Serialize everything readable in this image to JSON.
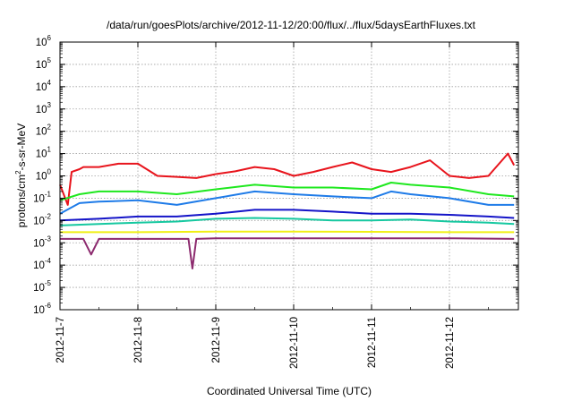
{
  "chart_data": {
    "type": "line",
    "title": "/data/run/goesPlots/archive/2012-11-12/20:00/flux/../flux/5daysEarthFluxes.txt",
    "xlabel": "Coordinated Universal Time (UTC)",
    "ylabel": {
      "prefix": "protons/cm",
      "sup": "2",
      "suffix": "-s-sr-MeV"
    },
    "y_scale": "log",
    "ylim": [
      1e-06,
      1000000.0
    ],
    "y_ticks": [
      {
        "base": "10",
        "exp": "-6",
        "value": 1e-06
      },
      {
        "base": "10",
        "exp": "-5",
        "value": 1e-05
      },
      {
        "base": "10",
        "exp": "-4",
        "value": 0.0001
      },
      {
        "base": "10",
        "exp": "-3",
        "value": 0.001
      },
      {
        "base": "10",
        "exp": "-2",
        "value": 0.01
      },
      {
        "base": "10",
        "exp": "-1",
        "value": 0.1
      },
      {
        "base": "10",
        "exp": "0",
        "value": 1
      },
      {
        "base": "10",
        "exp": "1",
        "value": 10
      },
      {
        "base": "10",
        "exp": "2",
        "value": 100
      },
      {
        "base": "10",
        "exp": "3",
        "value": 1000
      },
      {
        "base": "10",
        "exp": "4",
        "value": 10000
      },
      {
        "base": "10",
        "exp": "5",
        "value": 100000
      },
      {
        "base": "10",
        "exp": "6",
        "value": 1000000
      }
    ],
    "xlim": [
      "2012-11-07",
      "2012-11-12 20:00"
    ],
    "x_ticks": [
      "2012-11-7",
      "2012-11-8",
      "2012-11-9",
      "2012-11-10",
      "2012-11-11",
      "2012-11-12"
    ],
    "grid": true,
    "legend": "none",
    "series": [
      {
        "color": "#e8141c",
        "x": [
          0,
          0.1,
          0.15,
          0.25,
          0.3,
          0.5,
          0.75,
          1,
          1.25,
          1.5,
          1.75,
          2,
          2.25,
          2.5,
          2.75,
          3,
          3.25,
          3.5,
          3.75,
          4,
          4.25,
          4.5,
          4.75,
          5,
          5.25,
          5.5,
          5.75,
          5.83
        ],
        "y": [
          0.4,
          0.05,
          1.5,
          2.0,
          2.5,
          2.5,
          3.5,
          3.5,
          1.0,
          0.9,
          0.8,
          1.2,
          1.6,
          2.5,
          2.0,
          1.0,
          1.5,
          2.5,
          4.0,
          2.0,
          1.5,
          2.5,
          5.0,
          1.0,
          0.8,
          1.0,
          10,
          3.0
        ]
      },
      {
        "color": "#1ee81e",
        "x": [
          0,
          0.25,
          0.5,
          1,
          1.5,
          2,
          2.5,
          3,
          3.5,
          4,
          4.25,
          4.5,
          5,
          5.5,
          5.83
        ],
        "y": [
          0.08,
          0.15,
          0.2,
          0.2,
          0.15,
          0.25,
          0.4,
          0.3,
          0.3,
          0.25,
          0.5,
          0.4,
          0.3,
          0.15,
          0.12
        ]
      },
      {
        "color": "#1e7be8",
        "x": [
          0,
          0.25,
          0.5,
          1,
          1.5,
          2,
          2.5,
          3,
          3.5,
          4,
          4.25,
          4.5,
          5,
          5.5,
          5.83
        ],
        "y": [
          0.02,
          0.06,
          0.07,
          0.08,
          0.05,
          0.1,
          0.2,
          0.15,
          0.12,
          0.1,
          0.2,
          0.15,
          0.1,
          0.05,
          0.05
        ]
      },
      {
        "color": "#1414c8",
        "x": [
          0,
          0.5,
          1,
          1.5,
          2,
          2.5,
          3,
          3.5,
          4,
          4.5,
          5,
          5.5,
          5.83
        ],
        "y": [
          0.01,
          0.012,
          0.015,
          0.015,
          0.02,
          0.03,
          0.03,
          0.025,
          0.02,
          0.02,
          0.018,
          0.015,
          0.013
        ]
      },
      {
        "color": "#16c8a0",
        "x": [
          0,
          0.5,
          1,
          1.5,
          2,
          2.5,
          3,
          3.5,
          4,
          4.5,
          5,
          5.5,
          5.83
        ],
        "y": [
          0.006,
          0.007,
          0.008,
          0.009,
          0.012,
          0.013,
          0.012,
          0.01,
          0.01,
          0.011,
          0.009,
          0.008,
          0.007
        ]
      },
      {
        "color": "#f0f014",
        "x": [
          0,
          1,
          2,
          3,
          4,
          5,
          5.83
        ],
        "y": [
          0.003,
          0.003,
          0.0032,
          0.0032,
          0.0031,
          0.003,
          0.003
        ]
      },
      {
        "color": "#8c2a6e",
        "x": [
          0,
          0.3,
          0.4,
          0.5,
          1,
          1.5,
          1.65,
          1.7,
          1.75,
          2,
          3,
          4,
          5,
          5.83
        ],
        "y": [
          0.0015,
          0.0015,
          0.0003,
          0.0015,
          0.0015,
          0.0015,
          0.0015,
          7e-05,
          0.0015,
          0.0016,
          0.0016,
          0.0016,
          0.0016,
          0.0015
        ]
      }
    ]
  }
}
